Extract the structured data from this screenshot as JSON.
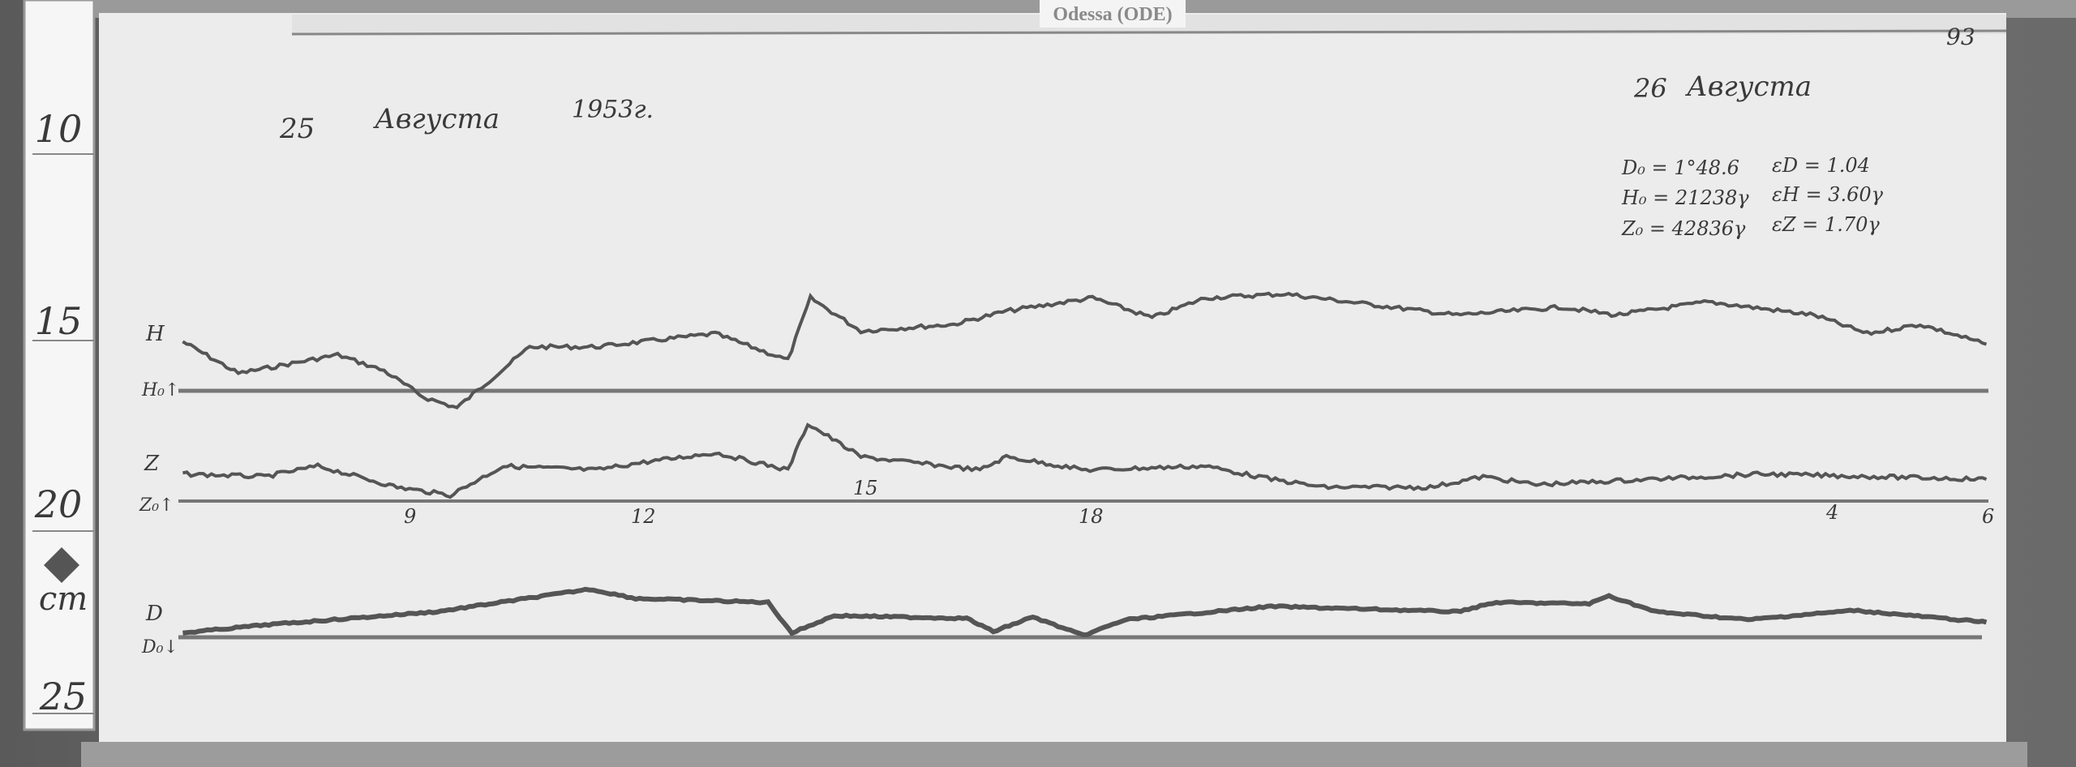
{
  "station_label": "Odessa (ODE)",
  "ruler": {
    "marks": [
      "10",
      "15",
      "20",
      "25"
    ],
    "unit": "cm"
  },
  "header": {
    "day1": "25",
    "month1": "Августа",
    "year": "1953г.",
    "day2": "26",
    "month2": "Августа",
    "page_mark": "93"
  },
  "constants": [
    {
      "left": "D₀ = 1°48.6",
      "right": "εD = 1.04"
    },
    {
      "left": "H₀ = 21238γ",
      "right": "εH = 3.60γ"
    },
    {
      "left": "Z₀ = 42836γ",
      "right": "εZ = 1.70γ"
    }
  ],
  "traces": {
    "H": {
      "label": "H",
      "baseline_label": "H₀↑"
    },
    "Z": {
      "label": "Z",
      "baseline_label": "Z₀↑"
    },
    "D": {
      "label": "D",
      "baseline_label": "D₀↓"
    }
  },
  "hour_marks": [
    "9",
    "12",
    "15",
    "18",
    "4",
    "6"
  ],
  "colors": {
    "paper": "#ececec",
    "ink": "#3c3c3c",
    "trace": "#555555"
  }
}
